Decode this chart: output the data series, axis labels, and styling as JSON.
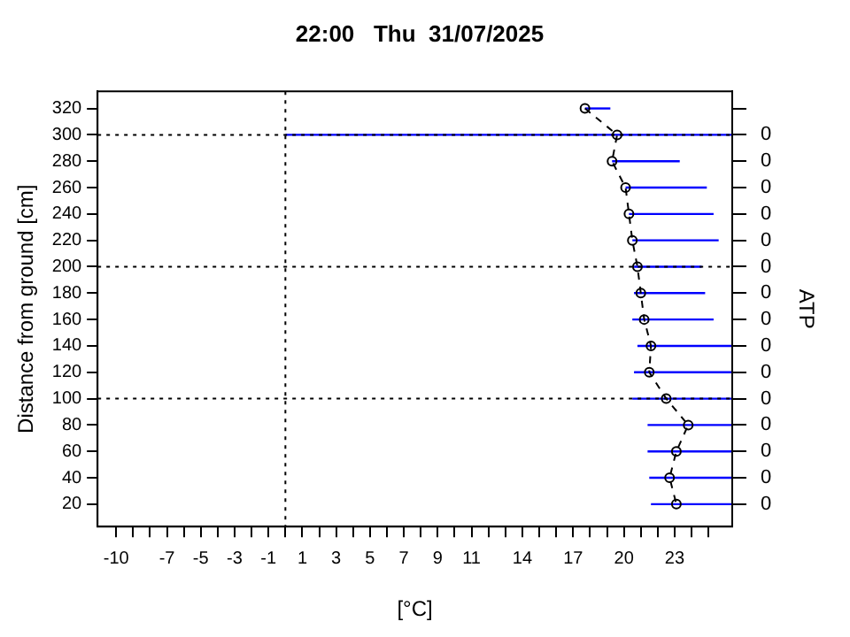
{
  "chart_data": {
    "type": "line",
    "title": "22:00   Thu  31/07/2025",
    "xlabel": "[°C]",
    "ylabel": "Distance from ground [cm]",
    "y2label": "ATP",
    "marker": "circle",
    "line_style": "dashed",
    "legend": false,
    "grid": false,
    "xlim": [
      -11.1,
      26.4
    ],
    "xticks": [
      -10,
      {
        "value": -9,
        "label": null
      },
      {
        "value": -8,
        "label": null
      },
      -7,
      {
        "value": -6,
        "label": null
      },
      -5,
      {
        "value": -4,
        "label": null
      },
      -3,
      {
        "value": -2,
        "label": null
      },
      -1,
      {
        "value": 0,
        "label": null
      },
      1,
      {
        "value": 2,
        "label": null
      },
      3,
      {
        "value": 4,
        "label": null
      },
      5,
      {
        "value": 6,
        "label": null
      },
      7,
      {
        "value": 8,
        "label": null
      },
      9,
      {
        "value": 10,
        "label": null
      },
      11,
      {
        "value": 12,
        "label": null
      },
      {
        "value": 13,
        "label": null
      },
      14,
      {
        "value": 15,
        "label": null
      },
      {
        "value": 16,
        "label": null
      },
      17,
      {
        "value": 18,
        "label": null
      },
      {
        "value": 19,
        "label": null
      },
      20,
      {
        "value": 21,
        "label": null
      },
      {
        "value": 22,
        "label": null
      },
      23,
      {
        "value": 24,
        "label": null
      },
      {
        "value": 25,
        "label": null
      }
    ],
    "ylim": [
      3,
      333
    ],
    "yticks": [
      20,
      40,
      60,
      80,
      100,
      120,
      140,
      160,
      180,
      200,
      220,
      240,
      260,
      280,
      300,
      320
    ],
    "annotations": [
      "0",
      "0",
      "0",
      "0",
      "0",
      "0",
      "0",
      "0",
      "0",
      "0",
      "0",
      "0",
      "0",
      "0",
      "0"
    ],
    "series": [
      {
        "color": "#000000",
        "x": [
          17.7,
          19.6,
          19.3,
          20.1,
          20.3,
          20.5,
          20.8,
          21.0,
          21.2,
          21.6,
          21.5,
          22.5,
          23.8,
          23.1,
          22.7,
          23.1
        ],
        "values": [
          320,
          300,
          280,
          260,
          240,
          220,
          200,
          180,
          160,
          140,
          120,
          100,
          80,
          60,
          40,
          20
        ],
        "xerrors": [
          [
            17.7,
            19.2
          ],
          [
            0,
            26.4
          ],
          [
            19.3,
            23.3
          ],
          [
            20.1,
            24.9
          ],
          [
            20.3,
            25.3
          ],
          [
            20.5,
            25.6
          ],
          [
            20.6,
            24.6
          ],
          [
            20.6,
            24.8
          ],
          [
            20.5,
            25.3
          ],
          [
            20.8,
            26.4
          ],
          [
            20.6,
            26.4
          ],
          [
            20.5,
            26.4
          ],
          [
            21.4,
            26.4
          ],
          [
            21.4,
            26.4
          ],
          [
            21.5,
            26.4
          ],
          [
            21.6,
            26.4
          ]
        ]
      }
    ],
    "ref_lines": [
      {
        "axis": "x",
        "value": 0,
        "line_style": "dotted"
      },
      {
        "axis": "y",
        "value": 300,
        "line_style": "dotted"
      },
      {
        "axis": "y",
        "value": 200,
        "line_style": "dotted"
      },
      {
        "axis": "y",
        "value": 100,
        "line_style": "dotted"
      }
    ]
  }
}
